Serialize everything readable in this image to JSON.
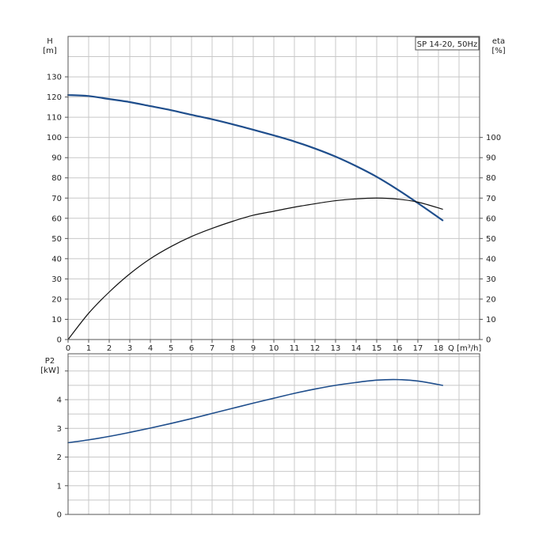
{
  "chart_data": [
    {
      "type": "line",
      "title": "SP 14-20, 50Hz",
      "xlabel": "Q [m³/h]",
      "ylabel_left": "H",
      "ylabel_left_unit": "[m]",
      "ylabel_right": "eta",
      "ylabel_right_unit": "[%]",
      "xlim": [
        0,
        20
      ],
      "ylim": [
        0,
        150
      ],
      "x_ticks": [
        0,
        1,
        2,
        3,
        4,
        5,
        6,
        7,
        8,
        9,
        10,
        11,
        12,
        13,
        14,
        15,
        16,
        17,
        18
      ],
      "y_ticks_left": [
        0,
        10,
        20,
        30,
        40,
        50,
        60,
        70,
        80,
        90,
        100,
        110,
        120,
        130
      ],
      "y_ticks_right": [
        0,
        10,
        20,
        30,
        40,
        50,
        60,
        70,
        80,
        90,
        100
      ],
      "grid": true,
      "series": [
        {
          "key": "head",
          "color": "#1f4e8c",
          "x": [
            0,
            1,
            2,
            3,
            4,
            5,
            6,
            7,
            8,
            9,
            10,
            11,
            12,
            13,
            14,
            15,
            16,
            17,
            18.2
          ],
          "values": [
            121,
            120.5,
            119,
            117.5,
            115.5,
            113.5,
            111.2,
            109,
            106.5,
            103.8,
            101,
            98,
            94.5,
            90.5,
            85.8,
            80.5,
            74.3,
            67.5,
            59
          ]
        },
        {
          "key": "efficiency",
          "color": "#111111",
          "x": [
            0,
            1,
            2,
            3,
            4,
            5,
            6,
            7,
            8,
            9,
            10,
            11,
            12,
            13,
            14,
            15,
            16,
            17,
            18.2
          ],
          "values": [
            0,
            13,
            23.5,
            32.5,
            40,
            46,
            51,
            55,
            58.5,
            61.5,
            63.5,
            65.5,
            67.2,
            68.7,
            69.6,
            70,
            69.5,
            68,
            64.5
          ]
        }
      ]
    },
    {
      "type": "line",
      "ylabel": "P2",
      "ylabel_unit": "[kW]",
      "xlim": [
        0,
        20
      ],
      "ylim": [
        0,
        5.6
      ],
      "y_ticks": [
        0,
        1,
        2,
        3,
        4
      ],
      "grid": true,
      "series": [
        {
          "key": "power",
          "color": "#1f4e8c",
          "x": [
            0,
            1,
            2,
            3,
            4,
            5,
            6,
            7,
            8,
            9,
            10,
            11,
            12,
            13,
            14,
            15,
            16,
            17,
            18.2
          ],
          "values": [
            2.5,
            2.6,
            2.72,
            2.86,
            3.01,
            3.17,
            3.34,
            3.52,
            3.7,
            3.88,
            4.05,
            4.22,
            4.37,
            4.5,
            4.6,
            4.68,
            4.7,
            4.65,
            4.5
          ]
        }
      ]
    }
  ]
}
